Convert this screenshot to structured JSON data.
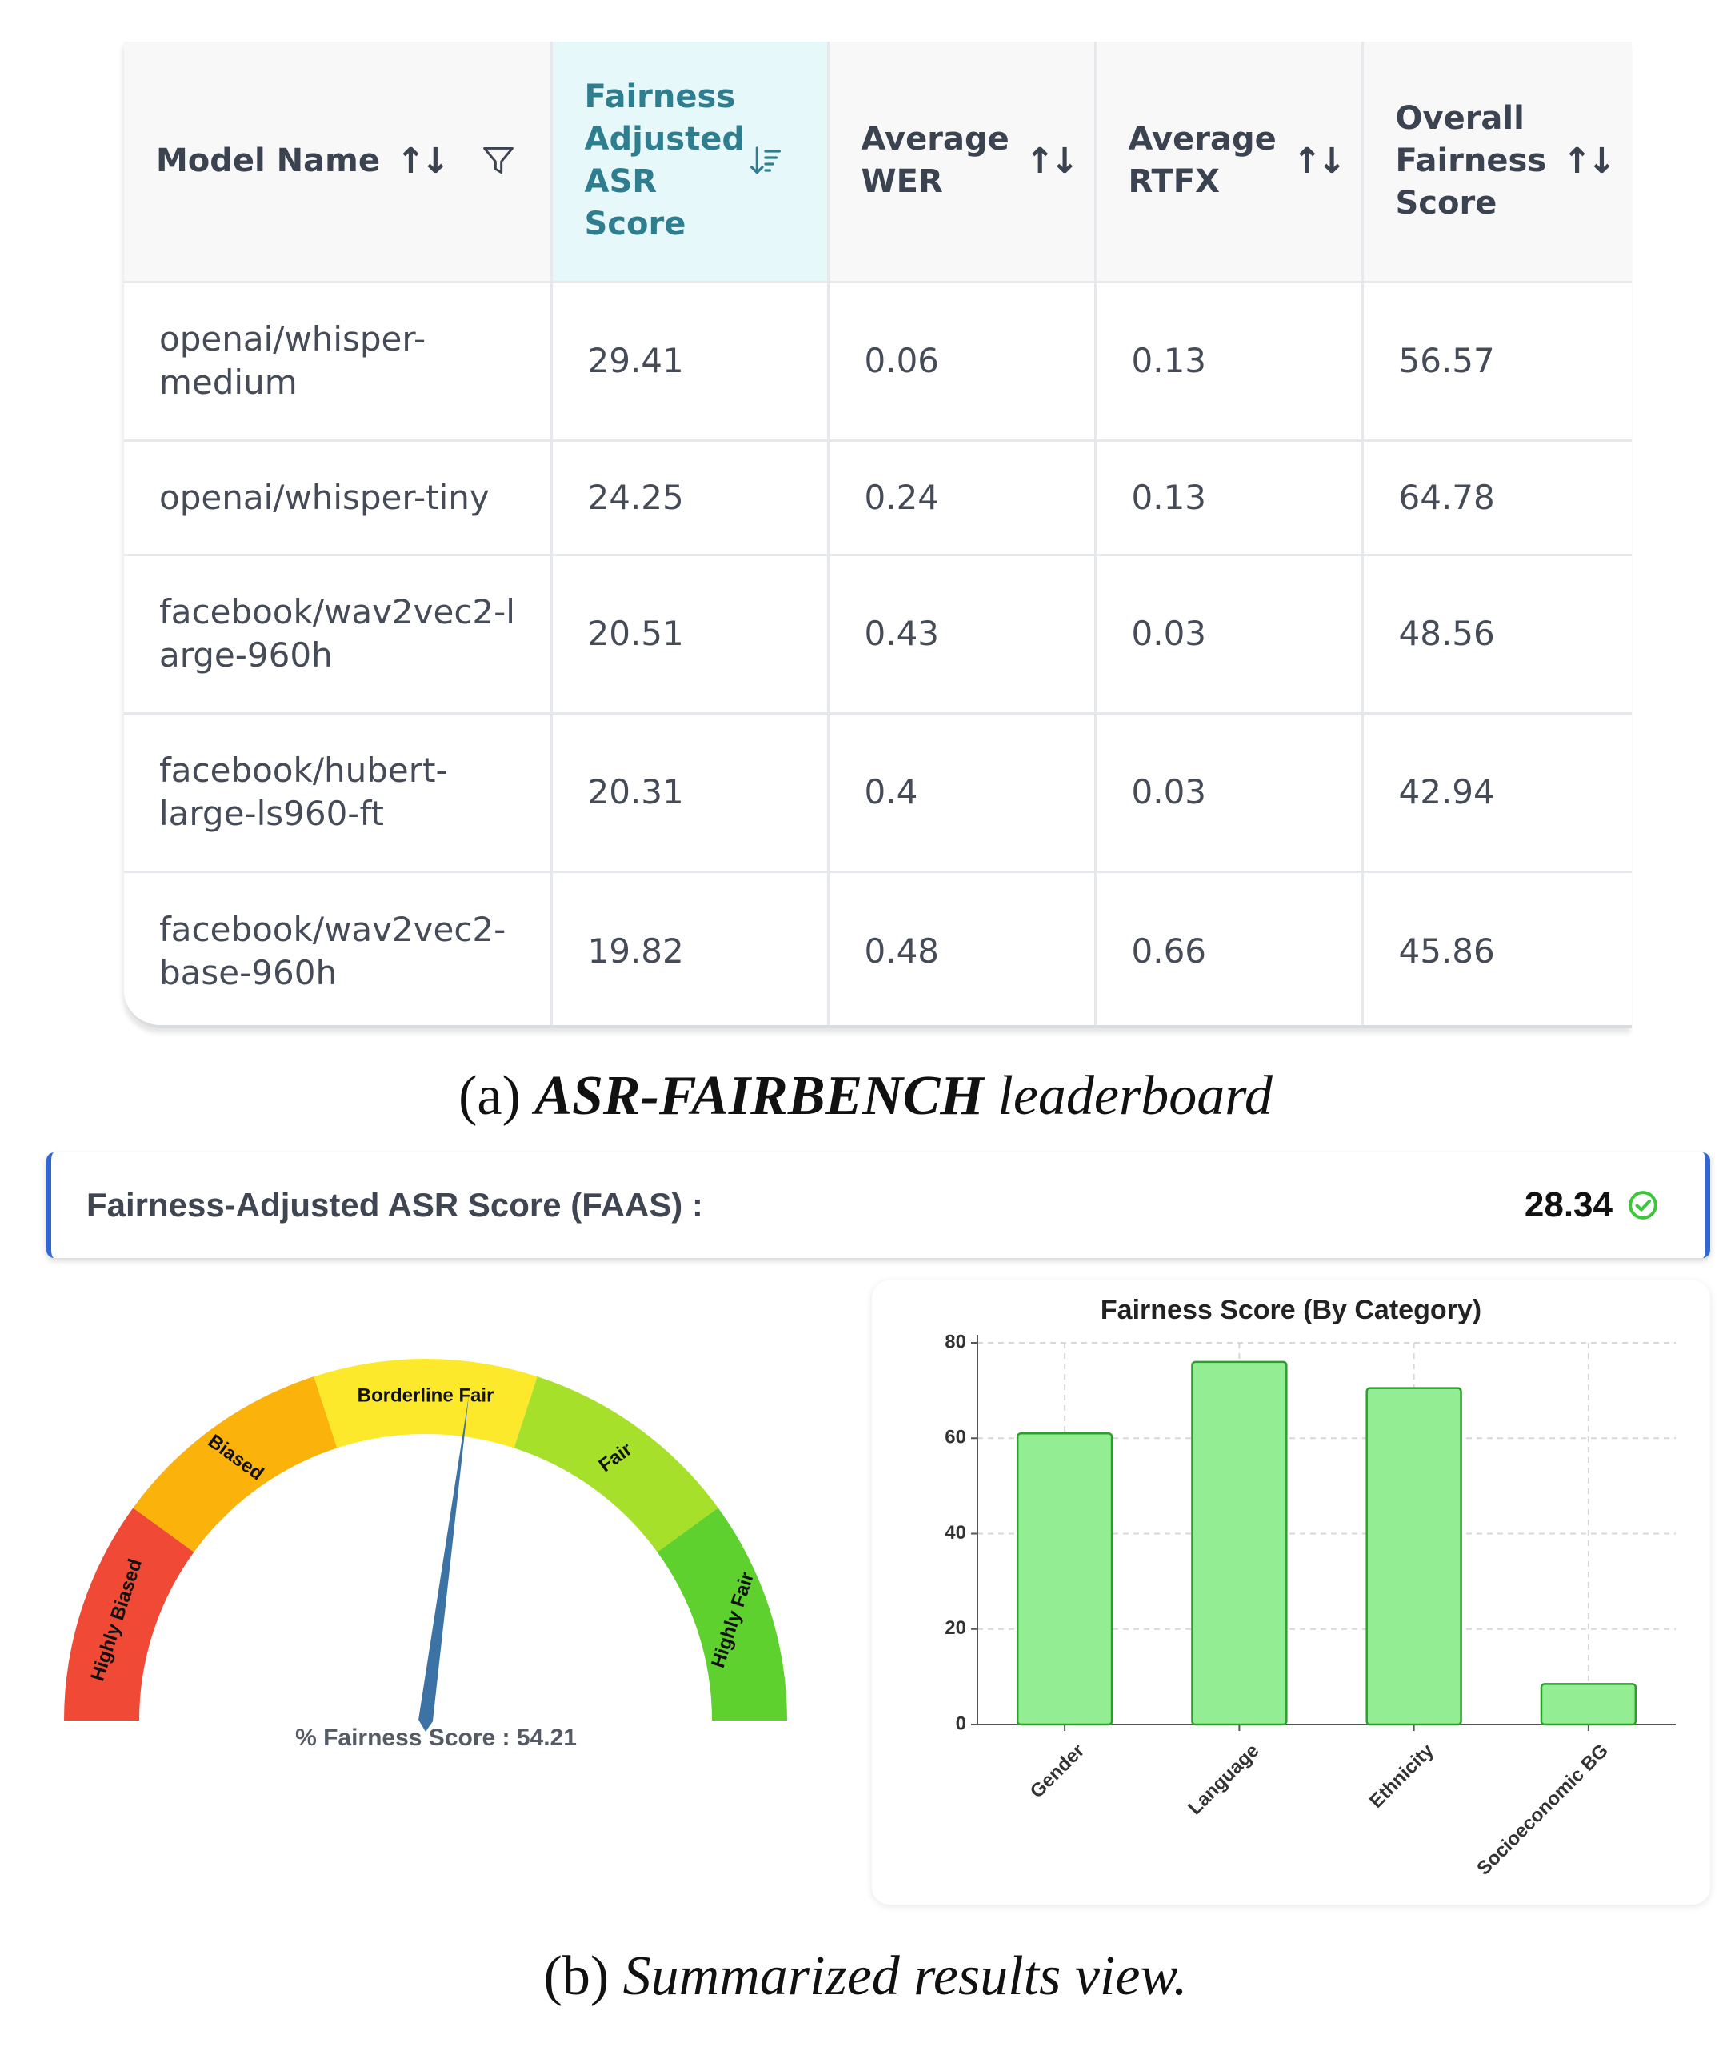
{
  "leaderboard": {
    "columns": [
      {
        "label": "Model Name",
        "sort_icon": "sort-arrows-icon",
        "filter_icon": "filter-icon"
      },
      {
        "label": "Fairness Adjusted ASR Score",
        "sort_icon": "sort-descending-icon",
        "active": true
      },
      {
        "label": "Average WER",
        "sort_icon": "sort-arrows-icon"
      },
      {
        "label": "Average RTFX",
        "sort_icon": "sort-arrows-icon"
      },
      {
        "label": "Overall Fairness Score",
        "sort_icon": "sort-arrows-icon"
      }
    ],
    "rows": [
      {
        "model": "openai/whisper-medium",
        "faas": "29.41",
        "wer": "0.06",
        "rtfx": "0.13",
        "fairness": "56.57"
      },
      {
        "model": "openai/whisper-tiny",
        "faas": "24.25",
        "wer": "0.24",
        "rtfx": "0.13",
        "fairness": "64.78"
      },
      {
        "model": "facebook/wav2vec2-large-960h",
        "faas": "20.51",
        "wer": "0.43",
        "rtfx": "0.03",
        "fairness": "48.56"
      },
      {
        "model": "facebook/hubert-large-ls960-ft",
        "faas": "20.31",
        "wer": "0.4",
        "rtfx": "0.03",
        "fairness": "42.94"
      },
      {
        "model": "facebook/wav2vec2-base-960h",
        "faas": "19.82",
        "wer": "0.48",
        "rtfx": "0.66",
        "fairness": "45.86"
      }
    ]
  },
  "caption_a": {
    "prefix": "(a) ",
    "name": "ASR-FAIRBENCH",
    "suffix": " leaderboard"
  },
  "faas": {
    "label": "Fairness-Adjusted ASR Score (FAAS) :",
    "value": "28.34",
    "status_icon": "check-circle-icon",
    "status_color": "#3cc63c"
  },
  "gauge": {
    "segments": [
      {
        "label": "Highly Biased",
        "color": "#f04a36"
      },
      {
        "label": "Biased",
        "color": "#fbb20a"
      },
      {
        "label": "Borderline Fair",
        "color": "#fde92c"
      },
      {
        "label": "Fair",
        "color": "#a7e02a"
      },
      {
        "label": "Highly Fair",
        "color": "#5fd12f"
      }
    ],
    "value": 54.21,
    "range": [
      0,
      100
    ],
    "needle_color": "#3d72a4",
    "score_label": "% Fairness Score : 54.21"
  },
  "chart_data": {
    "type": "bar",
    "title": "Fairness Score (By Category)",
    "categories": [
      "Gender",
      "Language",
      "Ethnicity",
      "Socioeconomic BG"
    ],
    "values": [
      61,
      76,
      70.5,
      8.5
    ],
    "ylim": [
      0,
      80
    ],
    "yticks": [
      0,
      20,
      40,
      60,
      80
    ],
    "grid": true,
    "bar_color": "#93ed93",
    "bar_edge_color": "#2aa02a"
  },
  "caption_b": {
    "prefix": "(b) ",
    "text": "Summarized results view."
  }
}
